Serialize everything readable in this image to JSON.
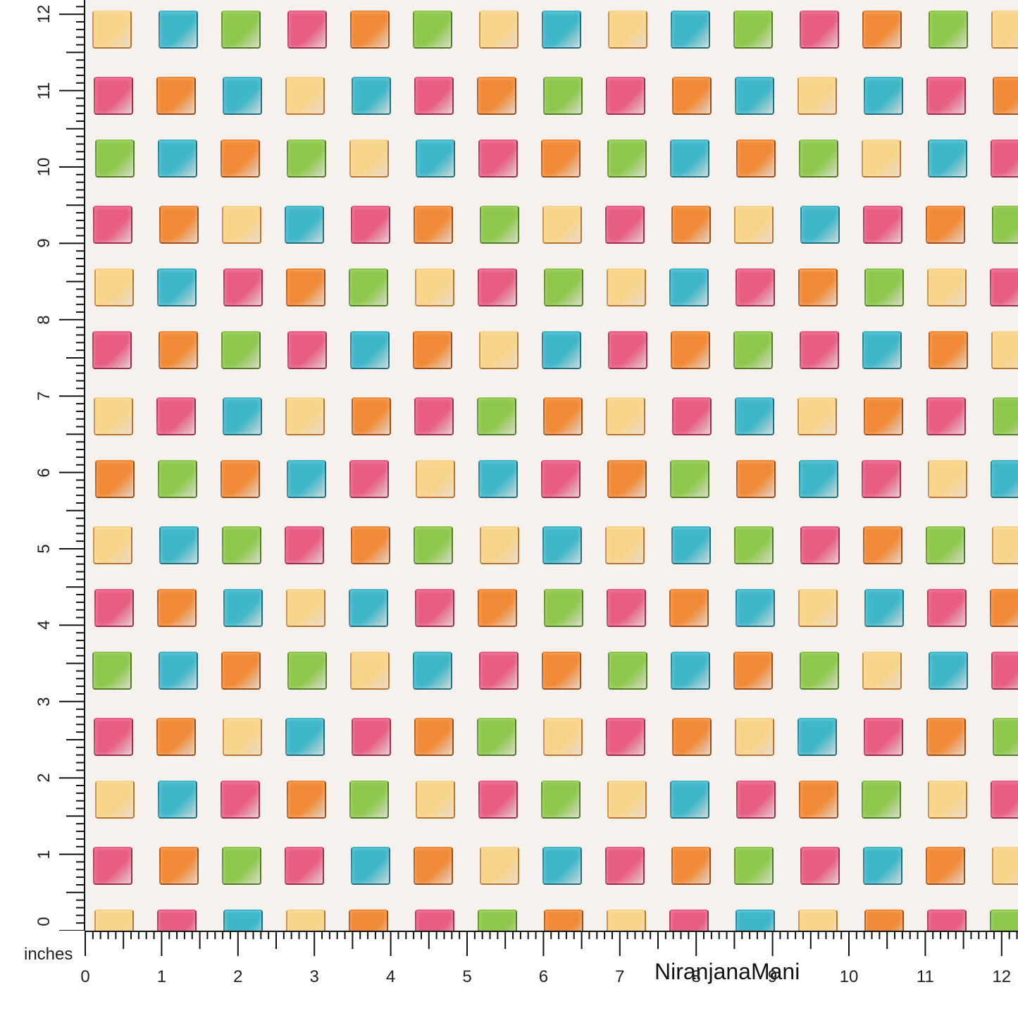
{
  "ruler": {
    "units_label": "inches",
    "x_ticks": [
      "0",
      "1",
      "2",
      "3",
      "4",
      "5",
      "6",
      "7",
      "8",
      "9",
      "10",
      "11",
      "12"
    ],
    "y_ticks": [
      "0",
      "1",
      "2",
      "3",
      "4",
      "5",
      "6",
      "7",
      "8",
      "9",
      "10",
      "11",
      "12"
    ]
  },
  "brand": {
    "name": "NiranjanaMani"
  },
  "palette": {
    "Y": {
      "fill": "#f7d48a",
      "edge": "#b8742c"
    },
    "B": {
      "fill": "#3fb7c9",
      "edge": "#1f6f82"
    },
    "G": {
      "fill": "#8ec74c",
      "edge": "#4f7d23"
    },
    "P": {
      "fill": "#e85d82",
      "edge": "#9c2e4c"
    },
    "O": {
      "fill": "#f18a37",
      "edge": "#9c4d18"
    }
  },
  "pattern_rows": [
    "YBGPOGYBYBGPOGY",
    "POBYBPOGPOBYBPO",
    "GBOGYBPOGBOGYBP",
    "POYBPOGYPOYBPOG",
    "YBPOGYPGYBPOGYP",
    "POGPBOYBPOGPBOY",
    "YPBYOPGOYPBYOPG",
    "OGOBPYBPOGOBPYB"
  ]
}
